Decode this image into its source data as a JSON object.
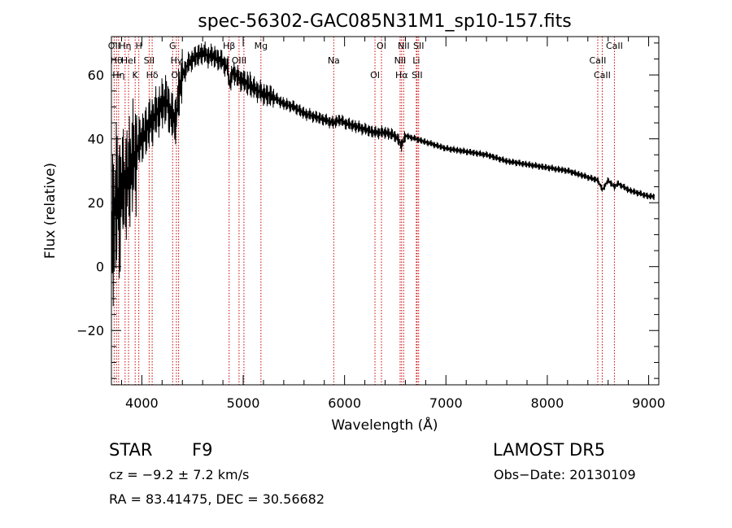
{
  "chart_data": {
    "type": "line",
    "title": "spec-56302-GAC085N31M1_sp10-157.fits",
    "xlabel": "Wavelength (Å)",
    "ylabel": "Flux (relative)",
    "xlim": [
      3700,
      9100
    ],
    "ylim": [
      -37,
      72
    ],
    "x_ticks": [
      4000,
      5000,
      6000,
      7000,
      8000,
      9000
    ],
    "y_ticks": [
      -20,
      0,
      20,
      40,
      60
    ],
    "grid": false,
    "line_color": "#000000",
    "marker_color": "#cc0000",
    "series": [
      {
        "x": [
          3700,
          3740,
          3780,
          3820,
          3850,
          3880,
          3910,
          3950,
          3990,
          4050,
          4100,
          4150,
          4200,
          4250,
          4300,
          4340,
          4360,
          4400,
          4450,
          4500,
          4550,
          4600,
          4650,
          4700,
          4750,
          4800,
          4850,
          4861,
          4900,
          4950,
          5000,
          5050,
          5100,
          5150,
          5200,
          5300,
          5400,
          5500,
          5600,
          5700,
          5800,
          5890,
          5950,
          6000,
          6100,
          6200,
          6300,
          6400,
          6500,
          6563,
          6600,
          6700,
          6800,
          6900,
          7000,
          7200,
          7400,
          7600,
          7800,
          8000,
          8200,
          8400,
          8500,
          8542,
          8600,
          8662,
          8700,
          8800,
          8900,
          9000,
          9060
        ],
        "y": [
          10,
          18,
          22,
          25,
          27,
          30,
          33,
          36,
          40,
          43,
          46,
          48,
          51,
          52,
          46,
          47,
          53,
          60,
          63,
          65,
          66,
          67,
          66,
          66,
          65,
          64,
          62,
          57,
          61,
          59,
          58,
          57,
          56,
          55,
          54,
          53,
          51,
          50,
          48,
          47,
          46,
          45,
          46,
          45,
          44,
          43,
          42,
          42,
          41,
          38,
          41,
          40,
          39,
          38,
          37,
          36,
          35,
          33,
          32,
          31,
          30,
          28,
          27,
          24,
          27,
          25,
          26,
          24,
          23,
          22,
          22
        ]
      }
    ],
    "lines": [
      {
        "wavelength": 3727,
        "labels": [
          "OII"
        ]
      },
      {
        "wavelength": 3750,
        "labels": [
          "Hθ"
        ]
      },
      {
        "wavelength": 3771,
        "labels": [
          "Hη"
        ]
      },
      {
        "wavelength": 3835,
        "labels": [
          "Hη"
        ]
      },
      {
        "wavelength": 3869,
        "labels": [
          "HeI"
        ]
      },
      {
        "wavelength": 3934,
        "labels": [
          "K"
        ]
      },
      {
        "wavelength": 3970,
        "labels": [
          "H"
        ]
      },
      {
        "wavelength": 4072,
        "labels": [
          "SII"
        ]
      },
      {
        "wavelength": 4102,
        "labels": [
          "Hδ"
        ]
      },
      {
        "wavelength": 4304,
        "labels": [
          "G"
        ]
      },
      {
        "wavelength": 4341,
        "labels": [
          "Hγ"
        ]
      },
      {
        "wavelength": 4363,
        "labels": [
          "OIII"
        ]
      },
      {
        "wavelength": 4861,
        "labels": [
          "Hβ"
        ]
      },
      {
        "wavelength": 4959,
        "labels": [
          "OIII"
        ]
      },
      {
        "wavelength": 5007,
        "labels": [
          "OIII"
        ]
      },
      {
        "wavelength": 5175,
        "labels": [
          "Mg"
        ]
      },
      {
        "wavelength": 5893,
        "labels": [
          "Na"
        ]
      },
      {
        "wavelength": 6300,
        "labels": [
          "OI"
        ]
      },
      {
        "wavelength": 6364,
        "labels": [
          "OI"
        ]
      },
      {
        "wavelength": 6548,
        "labels": [
          "NII"
        ]
      },
      {
        "wavelength": 6563,
        "labels": [
          "Hα"
        ]
      },
      {
        "wavelength": 6583,
        "labels": [
          "NII"
        ]
      },
      {
        "wavelength": 6708,
        "labels": [
          "Li"
        ]
      },
      {
        "wavelength": 6716,
        "labels": [
          "SII"
        ]
      },
      {
        "wavelength": 6731,
        "labels": [
          "SII"
        ]
      },
      {
        "wavelength": 8498,
        "labels": [
          "CaII"
        ]
      },
      {
        "wavelength": 8542,
        "labels": [
          "CaII"
        ]
      },
      {
        "wavelength": 8662,
        "labels": [
          "CaII"
        ]
      }
    ]
  },
  "info": {
    "object_class": "STAR",
    "subclass": "F9",
    "survey": "LAMOST DR5",
    "redshift_text": "cz = −9.2 ± 7.2 km/s",
    "obs_date_text": "Obs−Date: 20130109",
    "coords_text": "RA =  83.41475, DEC =  30.56682"
  }
}
